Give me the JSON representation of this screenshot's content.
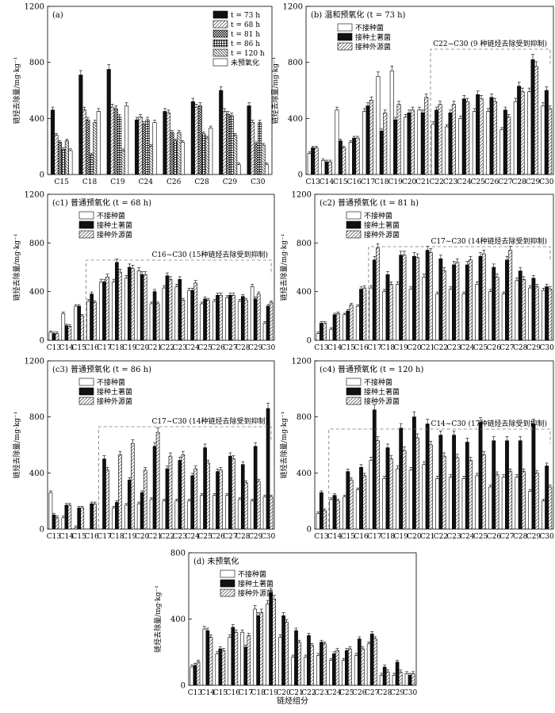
{
  "figure": {
    "xlabel": "链烃组分",
    "ylabel": "链烃去除量/mg·kg⁻¹",
    "colors": {
      "untreated": "#ffffff",
      "native": "#111111",
      "exogenous": "#ffffff",
      "axis": "#000000",
      "dashed": "#777777"
    }
  },
  "chart_data": [
    {
      "id": "a",
      "type": "bar",
      "title": "(a)",
      "categories": [
        "C15",
        "C18",
        "C19",
        "C24",
        "C26",
        "C28",
        "C29",
        "C30"
      ],
      "ylim": [
        0,
        1200
      ],
      "yticks": [
        0,
        400,
        800,
        1200
      ],
      "legend": [
        "t = 73 h",
        "t = 68 h",
        "t = 81 h",
        "t = 86 h",
        "t = 120 h",
        "未预氧化"
      ],
      "series": [
        {
          "name": "t = 73 h",
          "pattern": "black",
          "values": [
            460,
            710,
            750,
            390,
            450,
            520,
            600,
            490
          ]
        },
        {
          "name": "t = 68 h",
          "pattern": "hatch",
          "values": [
            280,
            460,
            480,
            410,
            440,
            480,
            450,
            370
          ]
        },
        {
          "name": "t = 81 h",
          "pattern": "check",
          "values": [
            230,
            390,
            470,
            360,
            300,
            490,
            430,
            220
          ]
        },
        {
          "name": "t = 86 h",
          "pattern": "grid",
          "values": [
            180,
            140,
            410,
            390,
            240,
            290,
            420,
            370
          ]
        },
        {
          "name": "t = 120 h",
          "pattern": "dense",
          "values": [
            240,
            370,
            170,
            200,
            300,
            260,
            280,
            210
          ]
        },
        {
          "name": "未预氧化",
          "pattern": "white",
          "values": [
            170,
            450,
            490,
            370,
            230,
            330,
            70,
            70
          ]
        }
      ]
    },
    {
      "id": "b",
      "type": "bar",
      "title": "(b) 温和预氧化 (t = 73 h)",
      "categories": [
        "C13",
        "C14",
        "C15",
        "C16",
        "C17",
        "C18",
        "C19",
        "C20",
        "C21",
        "C22",
        "C23",
        "C24",
        "C25",
        "C26",
        "C27",
        "C28",
        "C29",
        "C30"
      ],
      "ylim": [
        0,
        1200
      ],
      "yticks": [
        0,
        400,
        800,
        1200
      ],
      "legend": [
        "不接种菌",
        "接种土著菌",
        "接种外源菌"
      ],
      "annotation": "C22~C30 (9 种链烃去除受到抑制)",
      "series": [
        {
          "name": "不接种菌",
          "pattern": "white",
          "values": [
            150,
            100,
            460,
            230,
            450,
            700,
            740,
            410,
            460,
            360,
            340,
            400,
            450,
            450,
            320,
            520,
            590,
            490
          ]
        },
        {
          "name": "接种土著菌",
          "pattern": "black",
          "values": [
            190,
            90,
            240,
            260,
            490,
            310,
            390,
            440,
            440,
            460,
            440,
            540,
            570,
            550,
            460,
            630,
            820,
            600
          ]
        },
        {
          "name": "接种外源菌",
          "pattern": "hatch",
          "values": [
            190,
            90,
            190,
            260,
            530,
            440,
            500,
            460,
            550,
            500,
            500,
            520,
            540,
            520,
            410,
            590,
            770,
            470
          ]
        }
      ]
    },
    {
      "id": "c1",
      "type": "bar",
      "title": "(c1) 普通预氧化 (t = 68 h)",
      "categories": [
        "C13",
        "C14",
        "C15",
        "C16",
        "C17",
        "C18",
        "C19",
        "C20",
        "C21",
        "C22",
        "C23",
        "C24",
        "C25",
        "C26",
        "C27",
        "C28",
        "C29",
        "C30"
      ],
      "ylim": [
        0,
        1200
      ],
      "yticks": [
        0,
        400,
        800,
        1200
      ],
      "legend": [
        "不接种菌",
        "接种土著菌",
        "接种外源菌"
      ],
      "annotation": "C16~C30 (15种链烃去除受到抑制)",
      "series": [
        {
          "name": "不接种菌",
          "pattern": "white",
          "values": [
            65,
            220,
            280,
            320,
            480,
            480,
            510,
            570,
            300,
            430,
            440,
            410,
            300,
            320,
            350,
            320,
            440,
            140
          ]
        },
        {
          "name": "接种土著菌",
          "pattern": "black",
          "values": [
            55,
            120,
            280,
            380,
            480,
            640,
            600,
            540,
            400,
            530,
            500,
            410,
            340,
            370,
            370,
            360,
            340,
            280
          ]
        },
        {
          "name": "接种外源菌",
          "pattern": "hatch",
          "values": [
            55,
            115,
            200,
            310,
            520,
            560,
            590,
            540,
            300,
            500,
            330,
            470,
            330,
            370,
            370,
            330,
            380,
            310
          ]
        }
      ]
    },
    {
      "id": "c2",
      "type": "bar",
      "title": "(c2) 普通预氧化 (t = 81 h)",
      "categories": [
        "C13",
        "C14",
        "C15",
        "C16",
        "C17",
        "C18",
        "C19",
        "C20",
        "C21",
        "C22",
        "C23",
        "C24",
        "C25",
        "C26",
        "C27",
        "C28",
        "C29",
        "C30"
      ],
      "ylim": [
        0,
        1200
      ],
      "yticks": [
        0,
        400,
        800,
        1200
      ],
      "legend": [
        "不接种菌",
        "接种土著菌",
        "接种外源菌"
      ],
      "annotation": "C17~C30 (14种链烃去除受到抑制)",
      "series": [
        {
          "name": "不接种菌",
          "pattern": "white",
          "values": [
            55,
            90,
            210,
            280,
            430,
            400,
            460,
            420,
            520,
            380,
            420,
            380,
            460,
            400,
            380,
            490,
            430,
            410
          ]
        },
        {
          "name": "接种土著菌",
          "pattern": "black",
          "values": [
            140,
            210,
            240,
            420,
            660,
            540,
            700,
            690,
            740,
            670,
            620,
            620,
            690,
            600,
            660,
            570,
            510,
            440
          ]
        },
        {
          "name": "接种外源菌",
          "pattern": "hatch",
          "values": [
            140,
            220,
            290,
            430,
            760,
            460,
            700,
            680,
            720,
            570,
            640,
            660,
            710,
            520,
            740,
            500,
            440,
            420
          ]
        }
      ]
    },
    {
      "id": "c3",
      "type": "bar",
      "title": "(c3) 普通预氧化 (t = 86 h)",
      "categories": [
        "C13",
        "C14",
        "C15",
        "C16",
        "C17",
        "C18",
        "C19",
        "C20",
        "C21",
        "C22",
        "C23",
        "C24",
        "C25",
        "C26",
        "C27",
        "C28",
        "C29",
        "C30"
      ],
      "ylim": [
        0,
        1200
      ],
      "yticks": [
        0,
        400,
        800,
        1200
      ],
      "legend": [
        "不接种菌",
        "接种土著菌",
        "接种外源菌"
      ],
      "annotation": "C17~C30 (14种链烃去除受到抑制)",
      "series": [
        {
          "name": "不接种菌",
          "pattern": "white",
          "values": [
            260,
            80,
            10,
            0,
            0,
            150,
            170,
            180,
            210,
            200,
            200,
            200,
            240,
            240,
            240,
            210,
            200,
            230
          ]
        },
        {
          "name": "接种土著菌",
          "pattern": "black",
          "values": [
            100,
            170,
            150,
            180,
            500,
            190,
            350,
            260,
            590,
            430,
            490,
            380,
            580,
            410,
            520,
            460,
            590,
            860
          ]
        },
        {
          "name": "接种外源菌",
          "pattern": "hatch",
          "values": [
            80,
            170,
            150,
            180,
            420,
            530,
            610,
            420,
            690,
            520,
            530,
            430,
            470,
            420,
            500,
            330,
            340,
            230
          ]
        }
      ]
    },
    {
      "id": "c4",
      "type": "bar",
      "title": "(c4) 普通预氧化 (t = 120 h)",
      "categories": [
        "C13",
        "C14",
        "C15",
        "C16",
        "C17",
        "C18",
        "C19",
        "C20",
        "C21",
        "C22",
        "C23",
        "C24",
        "C25",
        "C26",
        "C27",
        "C28",
        "C29",
        "C30"
      ],
      "ylim": [
        0,
        1200
      ],
      "yticks": [
        0,
        400,
        800,
        1200
      ],
      "legend": [
        "不接种菌",
        "接种土著菌",
        "接种外源菌"
      ],
      "annotation": "C14~C30 (17种链烃去除受到抑制)",
      "series": [
        {
          "name": "不接种菌",
          "pattern": "white",
          "values": [
            110,
            210,
            230,
            280,
            490,
            360,
            430,
            420,
            460,
            360,
            370,
            360,
            380,
            300,
            370,
            370,
            270,
            200
          ]
        },
        {
          "name": "接种土著菌",
          "pattern": "black",
          "values": [
            260,
            240,
            410,
            440,
            850,
            580,
            720,
            800,
            750,
            670,
            670,
            620,
            760,
            630,
            630,
            630,
            750,
            450
          ]
        },
        {
          "name": "接种外源菌",
          "pattern": "hatch",
          "values": [
            130,
            200,
            350,
            380,
            630,
            500,
            560,
            650,
            600,
            520,
            510,
            490,
            530,
            390,
            410,
            410,
            400,
            300
          ]
        }
      ]
    },
    {
      "id": "d",
      "type": "bar",
      "title": "(d) 未预氧化",
      "categories": [
        "C13",
        "C14",
        "C15",
        "C16",
        "C17",
        "C18",
        "C19",
        "C20",
        "C21",
        "C22",
        "C23",
        "C24",
        "C25",
        "C26",
        "C27",
        "C28",
        "C29",
        "C30"
      ],
      "ylim": [
        0,
        800
      ],
      "yticks": [
        0,
        400,
        800
      ],
      "legend": [
        "不接种菌",
        "接种土著菌",
        "接种外源菌"
      ],
      "series": [
        {
          "name": "不接种菌",
          "pattern": "white",
          "values": [
            110,
            340,
            190,
            290,
            320,
            460,
            490,
            290,
            170,
            170,
            180,
            150,
            150,
            180,
            250,
            60,
            60,
            70
          ]
        },
        {
          "name": "接种土著菌",
          "pattern": "black",
          "values": [
            120,
            330,
            220,
            350,
            230,
            420,
            560,
            420,
            330,
            300,
            260,
            190,
            210,
            280,
            310,
            110,
            140,
            60
          ]
        },
        {
          "name": "接种外源菌",
          "pattern": "hatch",
          "values": [
            140,
            290,
            210,
            320,
            300,
            440,
            520,
            380,
            260,
            240,
            250,
            210,
            220,
            220,
            280,
            80,
            80,
            70
          ]
        }
      ]
    }
  ]
}
